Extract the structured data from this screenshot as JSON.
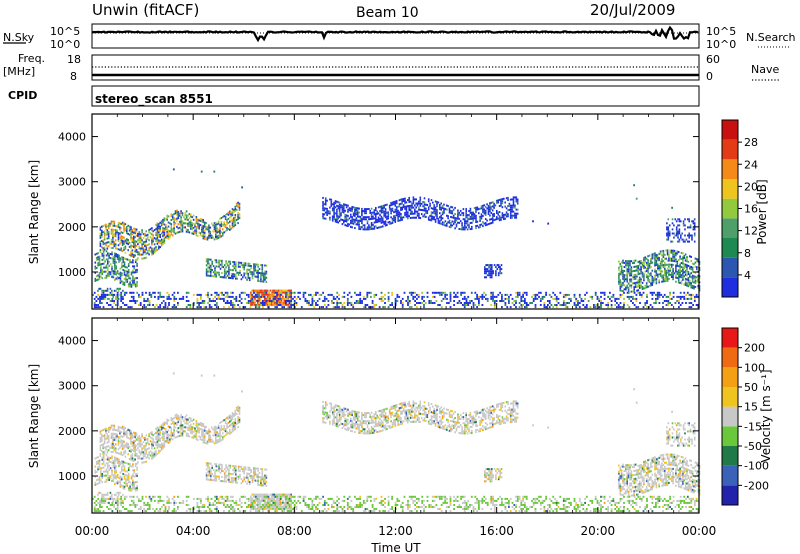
{
  "header": {
    "title": "Unwin (fitACF)",
    "beam": "Beam 10",
    "date": "20/Jul/2009"
  },
  "top_panels": {
    "nsky_label": "N.Sky",
    "nsky_ticks": [
      "10^5",
      "10^0"
    ],
    "nsearch_label": "N.Search",
    "nsearch_ticks": [
      "10^5",
      "10^0"
    ],
    "freq_label": "Freq.",
    "freq_unit": "[MHz]",
    "freq_ticks": [
      "18",
      "8"
    ],
    "nave_label": "Nave",
    "nave_ticks": [
      "60",
      "0"
    ],
    "cpid_label": "CPID",
    "cpid_value": "stereo_scan 8551"
  },
  "chart_data": [
    {
      "type": "heatmap",
      "name": "Power",
      "ylabel": "Slant Range [km]",
      "yticks": [
        "4000",
        "3000",
        "2000",
        "1000"
      ],
      "yticks_values": [
        4000,
        3000,
        2000,
        1000
      ],
      "ylim": [
        180,
        4500
      ],
      "xlim": [
        0,
        24
      ],
      "colorbar_label": "Power [dB]",
      "colorbar_ticks": [
        "28",
        "24",
        "20",
        "16",
        "12",
        "8",
        "4"
      ],
      "colorbar_values": [
        28,
        24,
        20,
        16,
        12,
        8,
        4
      ],
      "colorbar_range": [
        0,
        32
      ],
      "colors": [
        "#1f2fe0",
        "#2b57b0",
        "#1e8a52",
        "#4e9f6a",
        "#93c93c",
        "#f0c41e",
        "#f58a18",
        "#e23b16",
        "#c81010"
      ],
      "scatter_regions": [
        {
          "x": [
            0.3,
            5.8
          ],
          "y": [
            600,
            2350
          ],
          "level": "mixed-high"
        },
        {
          "x": [
            4.5,
            6.9
          ],
          "y": [
            850,
            1300
          ],
          "level": "mixed"
        },
        {
          "x": [
            6.2,
            7.9
          ],
          "y": [
            250,
            600
          ],
          "level": "high"
        },
        {
          "x": [
            9.1,
            16.8
          ],
          "y": [
            1900,
            2650
          ],
          "level": "low"
        },
        {
          "x": [
            20.8,
            24
          ],
          "y": [
            600,
            1500
          ],
          "level": "mixed"
        }
      ]
    },
    {
      "type": "heatmap",
      "name": "Velocity",
      "ylabel": "Slant Range [km]",
      "yticks": [
        "4000",
        "3000",
        "2000",
        "1000"
      ],
      "yticks_values": [
        4000,
        3000,
        2000,
        1000
      ],
      "ylim": [
        180,
        4500
      ],
      "xlim": [
        0,
        24
      ],
      "xlabel": "Time UT",
      "xticks": [
        "00:00",
        "04:00",
        "08:00",
        "12:00",
        "16:00",
        "20:00",
        "00:00"
      ],
      "xticks_values": [
        0,
        4,
        8,
        12,
        16,
        20,
        24
      ],
      "colorbar_label": "Velocity [m s⁻¹]",
      "colorbar_ticks": [
        "200",
        "100",
        "50",
        "15",
        "-15",
        "-50",
        "-100",
        "-200"
      ],
      "colorbar_range": [
        -250,
        250
      ],
      "colors": [
        "#2222aa",
        "#3a62b8",
        "#1f7a48",
        "#6ac83a",
        "#c8c8c8",
        "#f0c41e",
        "#f4a015",
        "#f06a14",
        "#e81818"
      ]
    }
  ]
}
